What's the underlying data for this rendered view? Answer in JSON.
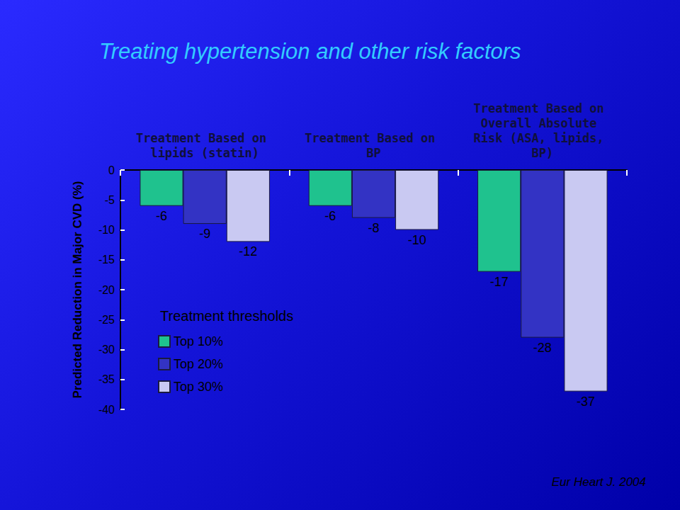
{
  "chart_data": {
    "type": "bar",
    "title": "Treating hypertension and other risk factors",
    "y_label": "Predicted Reduction in Major CVD (%)",
    "categories": [
      "Treatment Based on lipids (statin)",
      "Treatment Based on BP",
      "Treatment Based on Overall Absolute Risk (ASA, lipids, BP)"
    ],
    "series": [
      {
        "name": "Top 10%",
        "color": "#1fc28e",
        "values": [
          -6,
          -6,
          -17
        ]
      },
      {
        "name": "Top 20%",
        "color": "#3333c4",
        "values": [
          -9,
          -8,
          -28
        ]
      },
      {
        "name": "Top 30%",
        "color": "#c9c9f2",
        "values": [
          -12,
          -10,
          -37
        ]
      }
    ],
    "legend_title": "Treatment thresholds",
    "source": "Eur Heart J. 2004",
    "ylim": [
      -40,
      0
    ],
    "yticks": [
      -40,
      -35,
      -30,
      -25,
      -20,
      -15,
      -10,
      -5,
      0
    ],
    "legend": "lower left",
    "data_labels": true,
    "grid": false
  }
}
